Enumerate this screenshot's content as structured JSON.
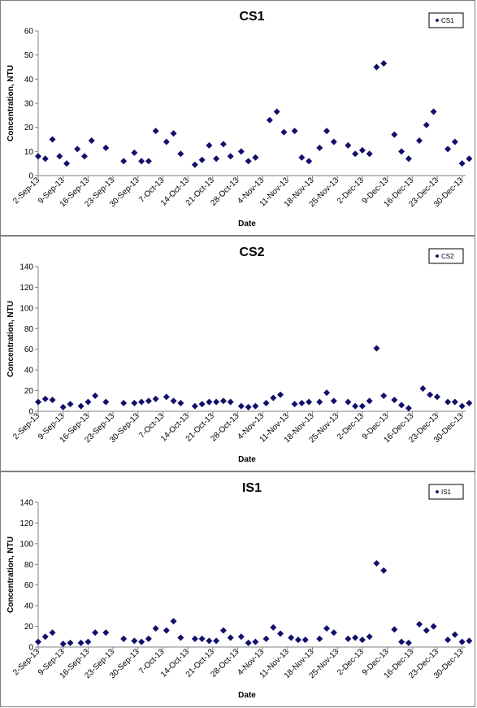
{
  "colors": {
    "marker": "#10106b",
    "axis": "#808080",
    "frame": "#7f7f7f"
  },
  "chart_data": [
    {
      "type": "scatter",
      "title": "CS1",
      "xlabel": "Date",
      "ylabel": "Concentration, NTU",
      "legend": {
        "labels": [
          "CS1"
        ],
        "position": "top-right"
      },
      "grid": false,
      "xlim": [
        "2013-09-02",
        "2013-12-31"
      ],
      "ylim": [
        0,
        60
      ],
      "yticks": [
        0,
        10,
        20,
        30,
        40,
        50,
        60
      ],
      "xticks": [
        "2-Sep-13",
        "9-Sep-13",
        "16-Sep-13",
        "23-Sep-13",
        "30-Sep-13",
        "7-Oct-13",
        "14-Oct-13",
        "21-Oct-13",
        "28-Oct-13",
        "4-Nov-13",
        "11-Nov-13",
        "18-Nov-13",
        "25-Nov-13",
        "2-Dec-13",
        "9-Dec-13",
        "16-Dec-13",
        "23-Dec-13",
        "30-Dec-13"
      ],
      "series": [
        {
          "name": "CS1",
          "marker": "diamond",
          "points": [
            {
              "x": "2013-09-02",
              "y": 8
            },
            {
              "x": "2013-09-04",
              "y": 7
            },
            {
              "x": "2013-09-06",
              "y": 15
            },
            {
              "x": "2013-09-08",
              "y": 8
            },
            {
              "x": "2013-09-10",
              "y": 5
            },
            {
              "x": "2013-09-13",
              "y": 11
            },
            {
              "x": "2013-09-15",
              "y": 8
            },
            {
              "x": "2013-09-17",
              "y": 14.5
            },
            {
              "x": "2013-09-21",
              "y": 11.5
            },
            {
              "x": "2013-09-26",
              "y": 6
            },
            {
              "x": "2013-09-29",
              "y": 9.5
            },
            {
              "x": "2013-10-01",
              "y": 6
            },
            {
              "x": "2013-10-03",
              "y": 6
            },
            {
              "x": "2013-10-05",
              "y": 18.5
            },
            {
              "x": "2013-10-08",
              "y": 14
            },
            {
              "x": "2013-10-10",
              "y": 17.5
            },
            {
              "x": "2013-10-12",
              "y": 9
            },
            {
              "x": "2013-10-16",
              "y": 4.5
            },
            {
              "x": "2013-10-18",
              "y": 6.5
            },
            {
              "x": "2013-10-20",
              "y": 12.5
            },
            {
              "x": "2013-10-22",
              "y": 7
            },
            {
              "x": "2013-10-24",
              "y": 13
            },
            {
              "x": "2013-10-26",
              "y": 8
            },
            {
              "x": "2013-10-29",
              "y": 10
            },
            {
              "x": "2013-10-31",
              "y": 6
            },
            {
              "x": "2013-11-02",
              "y": 7.5
            },
            {
              "x": "2013-11-06",
              "y": 23
            },
            {
              "x": "2013-11-08",
              "y": 26.5
            },
            {
              "x": "2013-11-10",
              "y": 18
            },
            {
              "x": "2013-11-13",
              "y": 18.5
            },
            {
              "x": "2013-11-15",
              "y": 7.5
            },
            {
              "x": "2013-11-17",
              "y": 6
            },
            {
              "x": "2013-11-20",
              "y": 11.5
            },
            {
              "x": "2013-11-22",
              "y": 18.5
            },
            {
              "x": "2013-11-24",
              "y": 14
            },
            {
              "x": "2013-11-28",
              "y": 12.5
            },
            {
              "x": "2013-11-30",
              "y": 9
            },
            {
              "x": "2013-12-02",
              "y": 10.5
            },
            {
              "x": "2013-12-04",
              "y": 9
            },
            {
              "x": "2013-12-06",
              "y": 45
            },
            {
              "x": "2013-12-08",
              "y": 46.5
            },
            {
              "x": "2013-12-11",
              "y": 17
            },
            {
              "x": "2013-12-13",
              "y": 10
            },
            {
              "x": "2013-12-15",
              "y": 7
            },
            {
              "x": "2013-12-18",
              "y": 14.5
            },
            {
              "x": "2013-12-20",
              "y": 21
            },
            {
              "x": "2013-12-22",
              "y": 26.5
            },
            {
              "x": "2013-12-26",
              "y": 11
            },
            {
              "x": "2013-12-28",
              "y": 14
            },
            {
              "x": "2013-12-30",
              "y": 5
            },
            {
              "x": "2014-01-01",
              "y": 7
            }
          ]
        }
      ]
    },
    {
      "type": "scatter",
      "title": "CS2",
      "xlabel": "Date",
      "ylabel": "Concentration, NTU",
      "legend": {
        "labels": [
          "CS2"
        ],
        "position": "top-right"
      },
      "grid": false,
      "xlim": [
        "2013-09-02",
        "2013-12-31"
      ],
      "ylim": [
        0,
        140
      ],
      "yticks": [
        0,
        20,
        40,
        60,
        80,
        100,
        120,
        140
      ],
      "xticks": [
        "2-Sep-13",
        "9-Sep-13",
        "16-Sep-13",
        "23-Sep-13",
        "30-Sep-13",
        "7-Oct-13",
        "14-Oct-13",
        "21-Oct-13",
        "28-Oct-13",
        "4-Nov-13",
        "11-Nov-13",
        "18-Nov-13",
        "25-Nov-13",
        "2-Dec-13",
        "9-Dec-13",
        "16-Dec-13",
        "23-Dec-13",
        "30-Dec-13"
      ],
      "series": [
        {
          "name": "CS2",
          "marker": "diamond",
          "points": [
            {
              "x": "2013-09-02",
              "y": 9
            },
            {
              "x": "2013-09-04",
              "y": 12
            },
            {
              "x": "2013-09-06",
              "y": 11
            },
            {
              "x": "2013-09-09",
              "y": 4
            },
            {
              "x": "2013-09-11",
              "y": 7
            },
            {
              "x": "2013-09-14",
              "y": 5
            },
            {
              "x": "2013-09-16",
              "y": 9
            },
            {
              "x": "2013-09-18",
              "y": 15
            },
            {
              "x": "2013-09-21",
              "y": 9
            },
            {
              "x": "2013-09-26",
              "y": 8
            },
            {
              "x": "2013-09-29",
              "y": 8
            },
            {
              "x": "2013-10-01",
              "y": 9
            },
            {
              "x": "2013-10-03",
              "y": 10
            },
            {
              "x": "2013-10-05",
              "y": 12
            },
            {
              "x": "2013-10-08",
              "y": 14
            },
            {
              "x": "2013-10-10",
              "y": 10
            },
            {
              "x": "2013-10-12",
              "y": 8
            },
            {
              "x": "2013-10-16",
              "y": 5
            },
            {
              "x": "2013-10-18",
              "y": 7
            },
            {
              "x": "2013-10-20",
              "y": 9
            },
            {
              "x": "2013-10-22",
              "y": 9
            },
            {
              "x": "2013-10-24",
              "y": 10
            },
            {
              "x": "2013-10-26",
              "y": 9
            },
            {
              "x": "2013-10-29",
              "y": 5
            },
            {
              "x": "2013-10-31",
              "y": 4
            },
            {
              "x": "2013-11-02",
              "y": 5
            },
            {
              "x": "2013-11-05",
              "y": 8
            },
            {
              "x": "2013-11-07",
              "y": 13
            },
            {
              "x": "2013-11-09",
              "y": 16
            },
            {
              "x": "2013-11-13",
              "y": 7
            },
            {
              "x": "2013-11-15",
              "y": 8
            },
            {
              "x": "2013-11-17",
              "y": 9
            },
            {
              "x": "2013-11-20",
              "y": 9
            },
            {
              "x": "2013-11-22",
              "y": 18
            },
            {
              "x": "2013-11-24",
              "y": 10
            },
            {
              "x": "2013-11-28",
              "y": 9
            },
            {
              "x": "2013-11-30",
              "y": 5
            },
            {
              "x": "2013-12-02",
              "y": 5
            },
            {
              "x": "2013-12-04",
              "y": 10
            },
            {
              "x": "2013-12-06",
              "y": 61
            },
            {
              "x": "2013-12-08",
              "y": 15
            },
            {
              "x": "2013-12-11",
              "y": 11
            },
            {
              "x": "2013-12-13",
              "y": 6
            },
            {
              "x": "2013-12-15",
              "y": 3
            },
            {
              "x": "2013-12-19",
              "y": 22
            },
            {
              "x": "2013-12-21",
              "y": 16
            },
            {
              "x": "2013-12-23",
              "y": 14
            },
            {
              "x": "2013-12-26",
              "y": 9
            },
            {
              "x": "2013-12-28",
              "y": 9
            },
            {
              "x": "2013-12-30",
              "y": 5
            },
            {
              "x": "2014-01-01",
              "y": 8
            }
          ]
        }
      ]
    },
    {
      "type": "scatter",
      "title": "IS1",
      "xlabel": "Date",
      "ylabel": "Concentration, NTU",
      "legend": {
        "labels": [
          "IS1"
        ],
        "position": "top-right"
      },
      "grid": false,
      "xlim": [
        "2013-09-02",
        "2013-12-31"
      ],
      "ylim": [
        0,
        140
      ],
      "yticks": [
        0,
        20,
        40,
        60,
        80,
        100,
        120,
        140
      ],
      "xticks": [
        "2-Sep-13",
        "9-Sep-13",
        "16-Sep-13",
        "23-Sep-13",
        "30-Sep-13",
        "7-Oct-13",
        "14-Oct-13",
        "21-Oct-13",
        "28-Oct-13",
        "4-Nov-13",
        "11-Nov-13",
        "18-Nov-13",
        "25-Nov-13",
        "2-Dec-13",
        "9-Dec-13",
        "16-Dec-13",
        "23-Dec-13",
        "30-Dec-13"
      ],
      "series": [
        {
          "name": "IS1",
          "marker": "diamond",
          "points": [
            {
              "x": "2013-09-02",
              "y": 5
            },
            {
              "x": "2013-09-04",
              "y": 10
            },
            {
              "x": "2013-09-06",
              "y": 14
            },
            {
              "x": "2013-09-09",
              "y": 3
            },
            {
              "x": "2013-09-11",
              "y": 4
            },
            {
              "x": "2013-09-14",
              "y": 4
            },
            {
              "x": "2013-09-16",
              "y": 5
            },
            {
              "x": "2013-09-18",
              "y": 14
            },
            {
              "x": "2013-09-21",
              "y": 14
            },
            {
              "x": "2013-09-26",
              "y": 8
            },
            {
              "x": "2013-09-29",
              "y": 6
            },
            {
              "x": "2013-10-01",
              "y": 5
            },
            {
              "x": "2013-10-03",
              "y": 8
            },
            {
              "x": "2013-10-05",
              "y": 18
            },
            {
              "x": "2013-10-08",
              "y": 16
            },
            {
              "x": "2013-10-10",
              "y": 25
            },
            {
              "x": "2013-10-12",
              "y": 9
            },
            {
              "x": "2013-10-16",
              "y": 8
            },
            {
              "x": "2013-10-18",
              "y": 8
            },
            {
              "x": "2013-10-20",
              "y": 6
            },
            {
              "x": "2013-10-22",
              "y": 6
            },
            {
              "x": "2013-10-24",
              "y": 16
            },
            {
              "x": "2013-10-26",
              "y": 9
            },
            {
              "x": "2013-10-29",
              "y": 10
            },
            {
              "x": "2013-10-31",
              "y": 4
            },
            {
              "x": "2013-11-02",
              "y": 5
            },
            {
              "x": "2013-11-05",
              "y": 8
            },
            {
              "x": "2013-11-07",
              "y": 19
            },
            {
              "x": "2013-11-09",
              "y": 13
            },
            {
              "x": "2013-11-12",
              "y": 9
            },
            {
              "x": "2013-11-14",
              "y": 7
            },
            {
              "x": "2013-11-16",
              "y": 7
            },
            {
              "x": "2013-11-20",
              "y": 8
            },
            {
              "x": "2013-11-22",
              "y": 18
            },
            {
              "x": "2013-11-24",
              "y": 14
            },
            {
              "x": "2013-11-28",
              "y": 8
            },
            {
              "x": "2013-11-30",
              "y": 9
            },
            {
              "x": "2013-12-02",
              "y": 7
            },
            {
              "x": "2013-12-04",
              "y": 10
            },
            {
              "x": "2013-12-06",
              "y": 81
            },
            {
              "x": "2013-12-08",
              "y": 74
            },
            {
              "x": "2013-12-11",
              "y": 17
            },
            {
              "x": "2013-12-13",
              "y": 5
            },
            {
              "x": "2013-12-15",
              "y": 4
            },
            {
              "x": "2013-12-18",
              "y": 22
            },
            {
              "x": "2013-12-20",
              "y": 16
            },
            {
              "x": "2013-12-22",
              "y": 20
            },
            {
              "x": "2013-12-26",
              "y": 7
            },
            {
              "x": "2013-12-28",
              "y": 12
            },
            {
              "x": "2013-12-30",
              "y": 5
            },
            {
              "x": "2014-01-01",
              "y": 6
            }
          ]
        }
      ]
    }
  ]
}
